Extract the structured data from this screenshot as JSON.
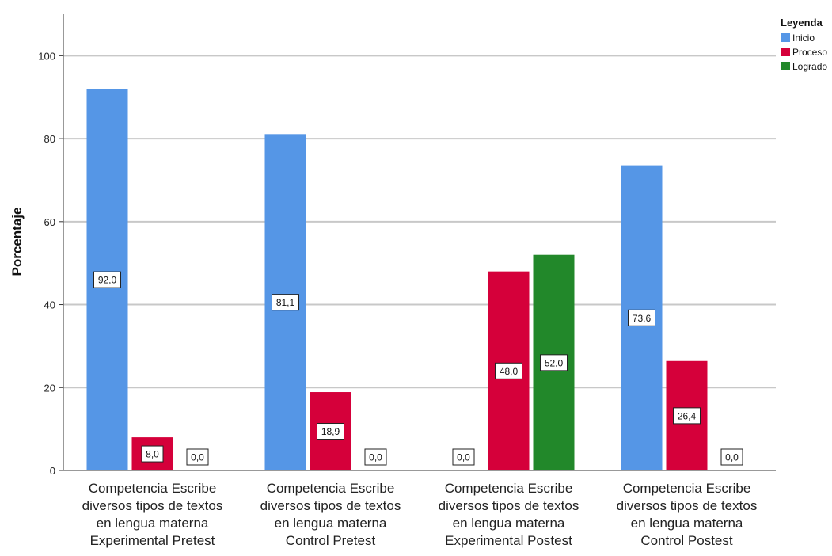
{
  "chart_data": {
    "type": "bar",
    "title": "",
    "xlabel": "",
    "ylabel": "Porcentaje",
    "ylim": [
      0,
      110
    ],
    "yticks": [
      0,
      20,
      40,
      60,
      80,
      100
    ],
    "grid": true,
    "legend_position": "top-right",
    "legend_title": "Leyenda",
    "categories": [
      [
        "Competencia Escribe",
        "diversos tipos de textos",
        "en lengua materna",
        "Experimental Pretest"
      ],
      [
        "Competencia Escribe",
        "diversos tipos de textos",
        "en lengua materna",
        "Control Pretest"
      ],
      [
        "Competencia Escribe",
        "diversos tipos de textos",
        "en lengua materna",
        "Experimental Postest"
      ],
      [
        "Competencia Escribe",
        "diversos tipos de textos",
        "en lengua materna",
        "Control Postest"
      ]
    ],
    "series": [
      {
        "name": "Inicio",
        "color": "#5596e6",
        "values": [
          92.0,
          81.1,
          0.0,
          73.6
        ],
        "labels": [
          "92,0",
          "81,1",
          "0,0",
          "73,6"
        ]
      },
      {
        "name": "Proceso",
        "color": "#d5003a",
        "values": [
          8.0,
          18.9,
          48.0,
          26.4
        ],
        "labels": [
          "8,0",
          "18,9",
          "48,0",
          "26,4"
        ]
      },
      {
        "name": "Logrado",
        "color": "#22882a",
        "values": [
          0.0,
          0.0,
          52.0,
          0.0
        ],
        "labels": [
          "0,0",
          "0,0",
          "52,0",
          "0,0"
        ]
      }
    ]
  }
}
